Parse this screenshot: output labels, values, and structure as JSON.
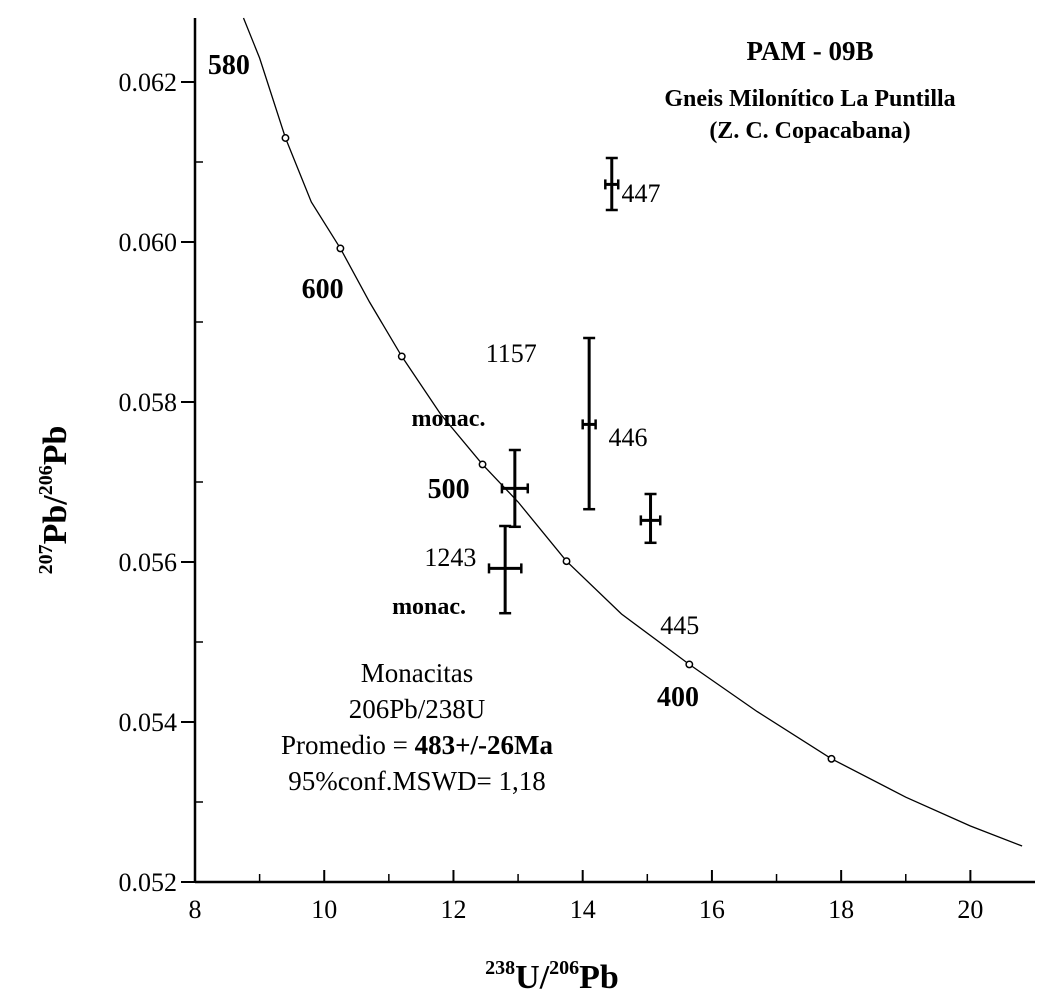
{
  "chart_data": {
    "type": "scatter",
    "title": "PAM - 09B",
    "subtitle_lines": [
      "Gneis Milonítico La Puntilla",
      "(Z. C. Copacabana)"
    ],
    "xlabel": {
      "sup1": "238",
      "main1": "U/",
      "sup2": "206",
      "main2": "Pb"
    },
    "ylabel": {
      "sup1": "207",
      "main1": "Pb/",
      "sup2": "206",
      "main2": "Pb"
    },
    "xlim": [
      8,
      21
    ],
    "ylim": [
      0.052,
      0.0628
    ],
    "x_ticks": [
      {
        "v": 8,
        "label": "8"
      },
      {
        "v": 10,
        "label": "10"
      },
      {
        "v": 12,
        "label": "12"
      },
      {
        "v": 14,
        "label": "14"
      },
      {
        "v": 16,
        "label": "16"
      },
      {
        "v": 18,
        "label": "18"
      },
      {
        "v": 20,
        "label": "20"
      }
    ],
    "x_minor_ticks": [
      9,
      11,
      13,
      15,
      17,
      19
    ],
    "y_ticks": [
      {
        "v": 0.052,
        "label": "0.052"
      },
      {
        "v": 0.054,
        "label": "0.054"
      },
      {
        "v": 0.056,
        "label": "0.056"
      },
      {
        "v": 0.058,
        "label": "0.058"
      },
      {
        "v": 0.06,
        "label": "0.060"
      },
      {
        "v": 0.062,
        "label": "0.062"
      }
    ],
    "y_minor_ticks": [
      0.053,
      0.055,
      0.057,
      0.059,
      0.061
    ],
    "concordia_curve": [
      [
        8.75,
        0.0628
      ],
      [
        9.0,
        0.0623
      ],
      [
        9.4,
        0.0613
      ],
      [
        9.8,
        0.0605
      ],
      [
        10.25,
        0.05992
      ],
      [
        10.7,
        0.05925
      ],
      [
        11.2,
        0.05857
      ],
      [
        11.8,
        0.05785
      ],
      [
        12.45,
        0.05722
      ],
      [
        13.0,
        0.05675
      ],
      [
        13.75,
        0.05601
      ],
      [
        14.6,
        0.05535
      ],
      [
        15.65,
        0.05472
      ],
      [
        16.7,
        0.05413
      ],
      [
        17.85,
        0.05354
      ],
      [
        19.0,
        0.05306
      ],
      [
        20.0,
        0.0527
      ],
      [
        20.8,
        0.05245
      ]
    ],
    "age_markers": [
      {
        "x": 9.4,
        "y": 0.0613
      },
      {
        "x": 10.25,
        "y": 0.05992
      },
      {
        "x": 11.2,
        "y": 0.05857
      },
      {
        "x": 12.45,
        "y": 0.05722
      },
      {
        "x": 13.75,
        "y": 0.05601
      },
      {
        "x": 15.65,
        "y": 0.05472
      },
      {
        "x": 17.85,
        "y": 0.05354
      }
    ],
    "age_labels": [
      {
        "text": "580",
        "x": 8.2,
        "y": 0.0621,
        "bold": true,
        "size": 28
      },
      {
        "text": "600",
        "x": 9.65,
        "y": 0.0593,
        "bold": true,
        "size": 28
      },
      {
        "text": "500",
        "x": 11.6,
        "y": 0.0568,
        "bold": true,
        "size": 28
      },
      {
        "text": "400",
        "x": 15.15,
        "y": 0.0542,
        "bold": true,
        "size": 28
      }
    ],
    "points": [
      {
        "x": 14.45,
        "y": 0.06072,
        "xerr": 0.1,
        "yerr_lo": 0.00032,
        "yerr_hi": 0.00033
      },
      {
        "x": 14.1,
        "y": 0.05772,
        "xerr": 0.1,
        "yerr_lo": 0.00106,
        "yerr_hi": 0.00108
      },
      {
        "x": 15.05,
        "y": 0.05652,
        "xerr": 0.15,
        "yerr_lo": 0.00028,
        "yerr_hi": 0.00033
      },
      {
        "x": 12.95,
        "y": 0.05692,
        "xerr": 0.2,
        "yerr_lo": 0.00048,
        "yerr_hi": 0.00048
      },
      {
        "x": 12.8,
        "y": 0.05592,
        "xerr": 0.25,
        "yerr_lo": 0.00056,
        "yerr_hi": 0.00053
      }
    ],
    "point_labels": [
      {
        "text": "447",
        "x": 14.6,
        "y": 0.0605,
        "bold": false,
        "size": 26
      },
      {
        "text": "1157",
        "x": 12.5,
        "y": 0.0585,
        "bold": false,
        "size": 26
      },
      {
        "text": "monac.",
        "x": 11.35,
        "y": 0.0577,
        "bold": true,
        "size": 24
      },
      {
        "text": "446",
        "x": 14.4,
        "y": 0.05745,
        "bold": false,
        "size": 26
      },
      {
        "text": "1243",
        "x": 11.55,
        "y": 0.05595,
        "bold": false,
        "size": 26
      },
      {
        "text": "monac.",
        "x": 11.05,
        "y": 0.05535,
        "bold": true,
        "size": 24
      },
      {
        "text": "445",
        "x": 15.2,
        "y": 0.0551,
        "bold": false,
        "size": 26
      }
    ],
    "annotation_lines": [
      {
        "text": "Monacitas",
        "bold": false
      },
      {
        "text": "206Pb/238U",
        "bold": false
      },
      {
        "text": "Promedio = ",
        "bold": false,
        "tail": "483+/-26Ma"
      },
      {
        "text": "95%conf.MSWD= 1,18",
        "bold": false
      }
    ]
  }
}
